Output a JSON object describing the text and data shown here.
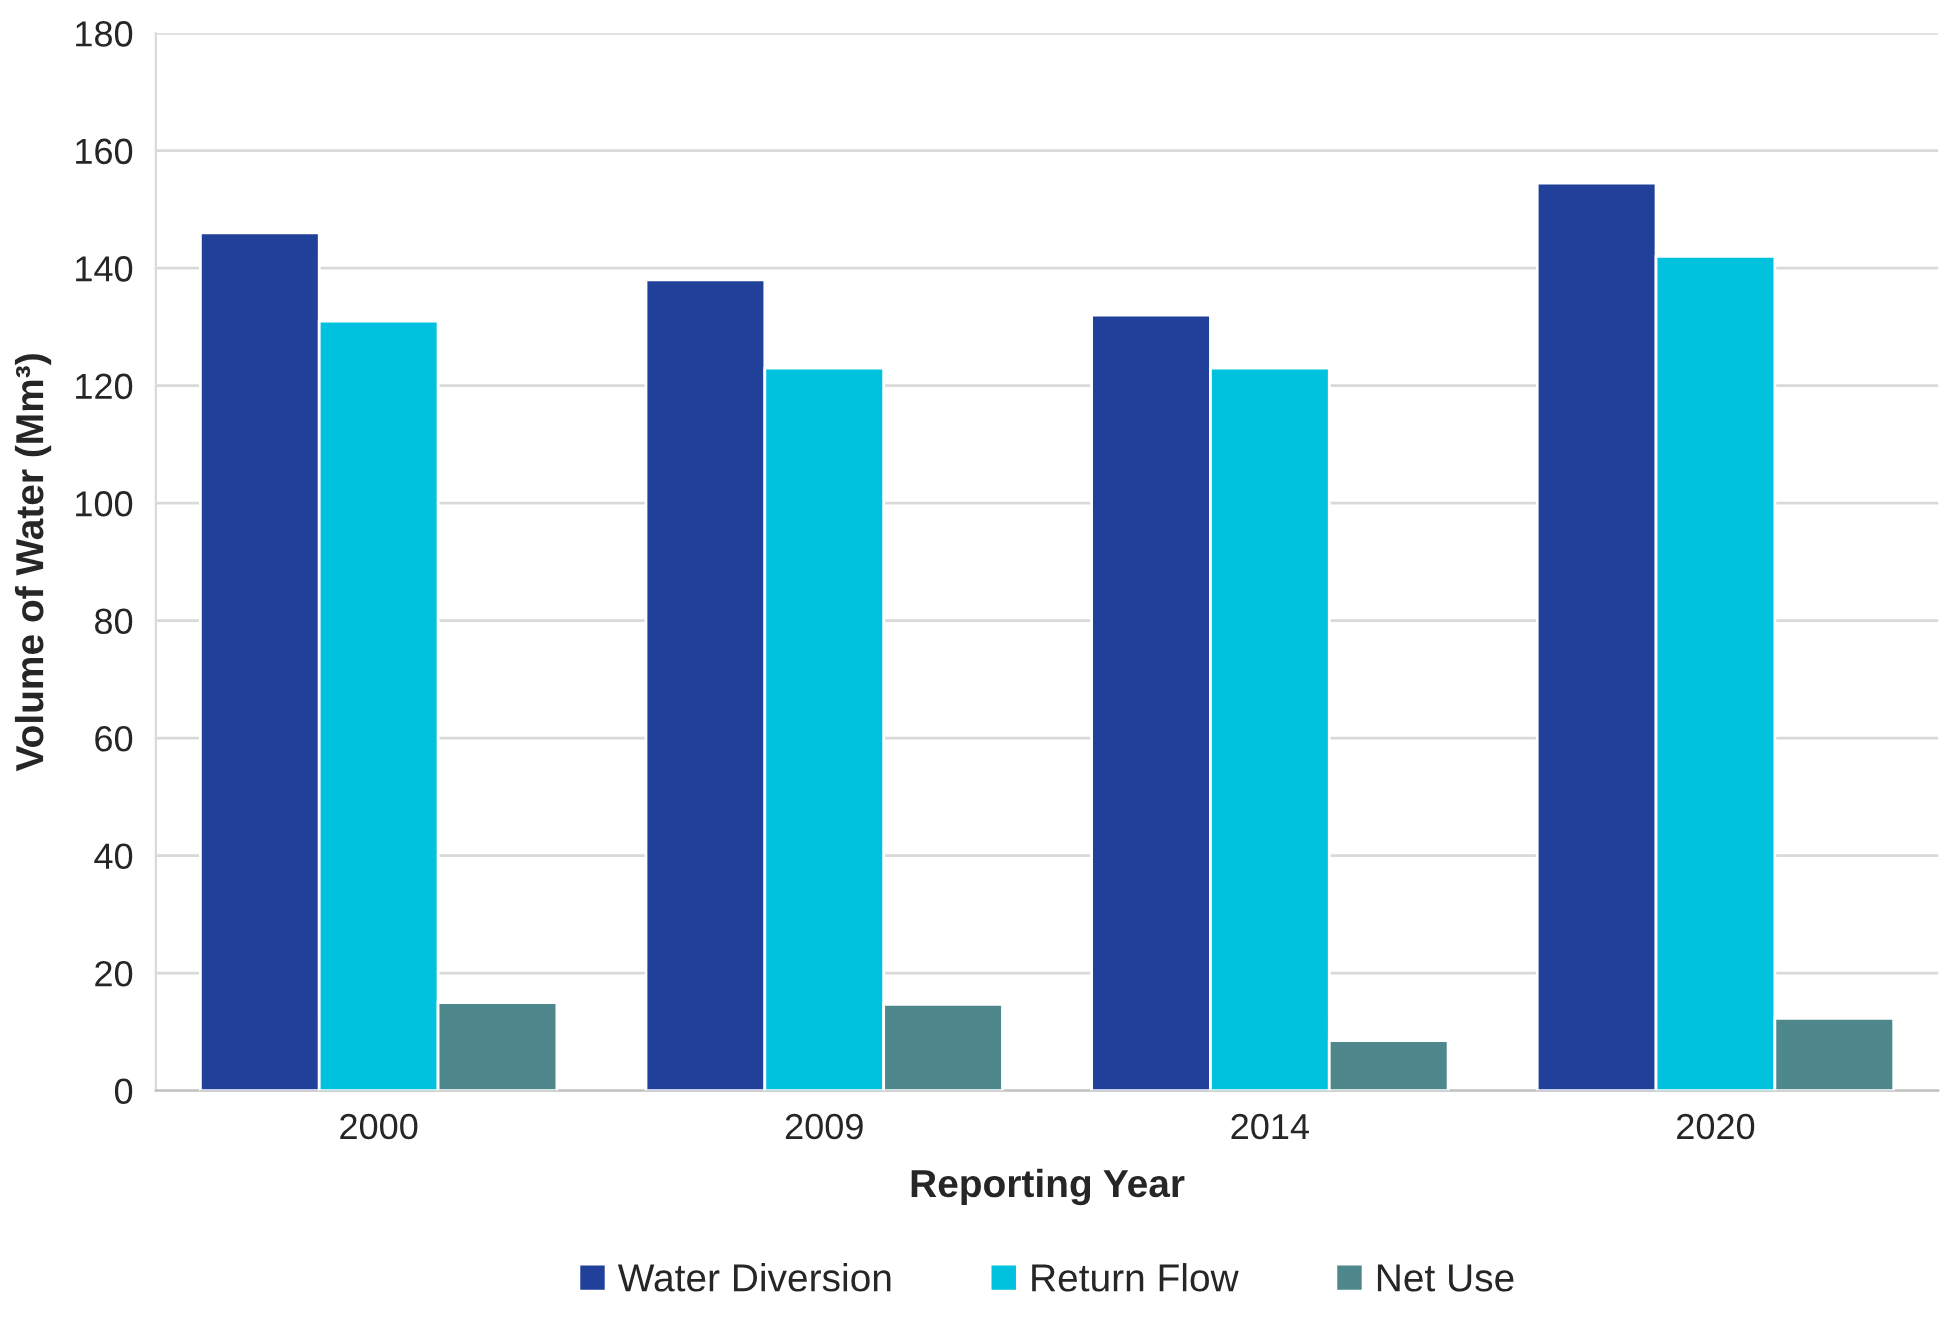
{
  "chart_data": {
    "type": "bar",
    "xlabel": "Reporting Year",
    "ylabel": "Volume of Water (Mm³)",
    "categories": [
      "2000",
      "2009",
      "2014",
      "2020"
    ],
    "series": [
      {
        "name": "Water Diversion",
        "color": "#21409a",
        "values": [
          146,
          138,
          132,
          154.5
        ]
      },
      {
        "name": "Return Flow",
        "color": "#00c1de",
        "values": [
          131,
          123,
          123,
          142
        ]
      },
      {
        "name": "Net Use",
        "color": "#4e878c",
        "values": [
          15,
          14.7,
          8.5,
          12.3
        ]
      }
    ],
    "ylim": [
      0,
      180
    ],
    "yticks": [
      0,
      20,
      40,
      60,
      80,
      100,
      120,
      140,
      160,
      180
    ],
    "grid": "y",
    "legend": "bottom"
  }
}
